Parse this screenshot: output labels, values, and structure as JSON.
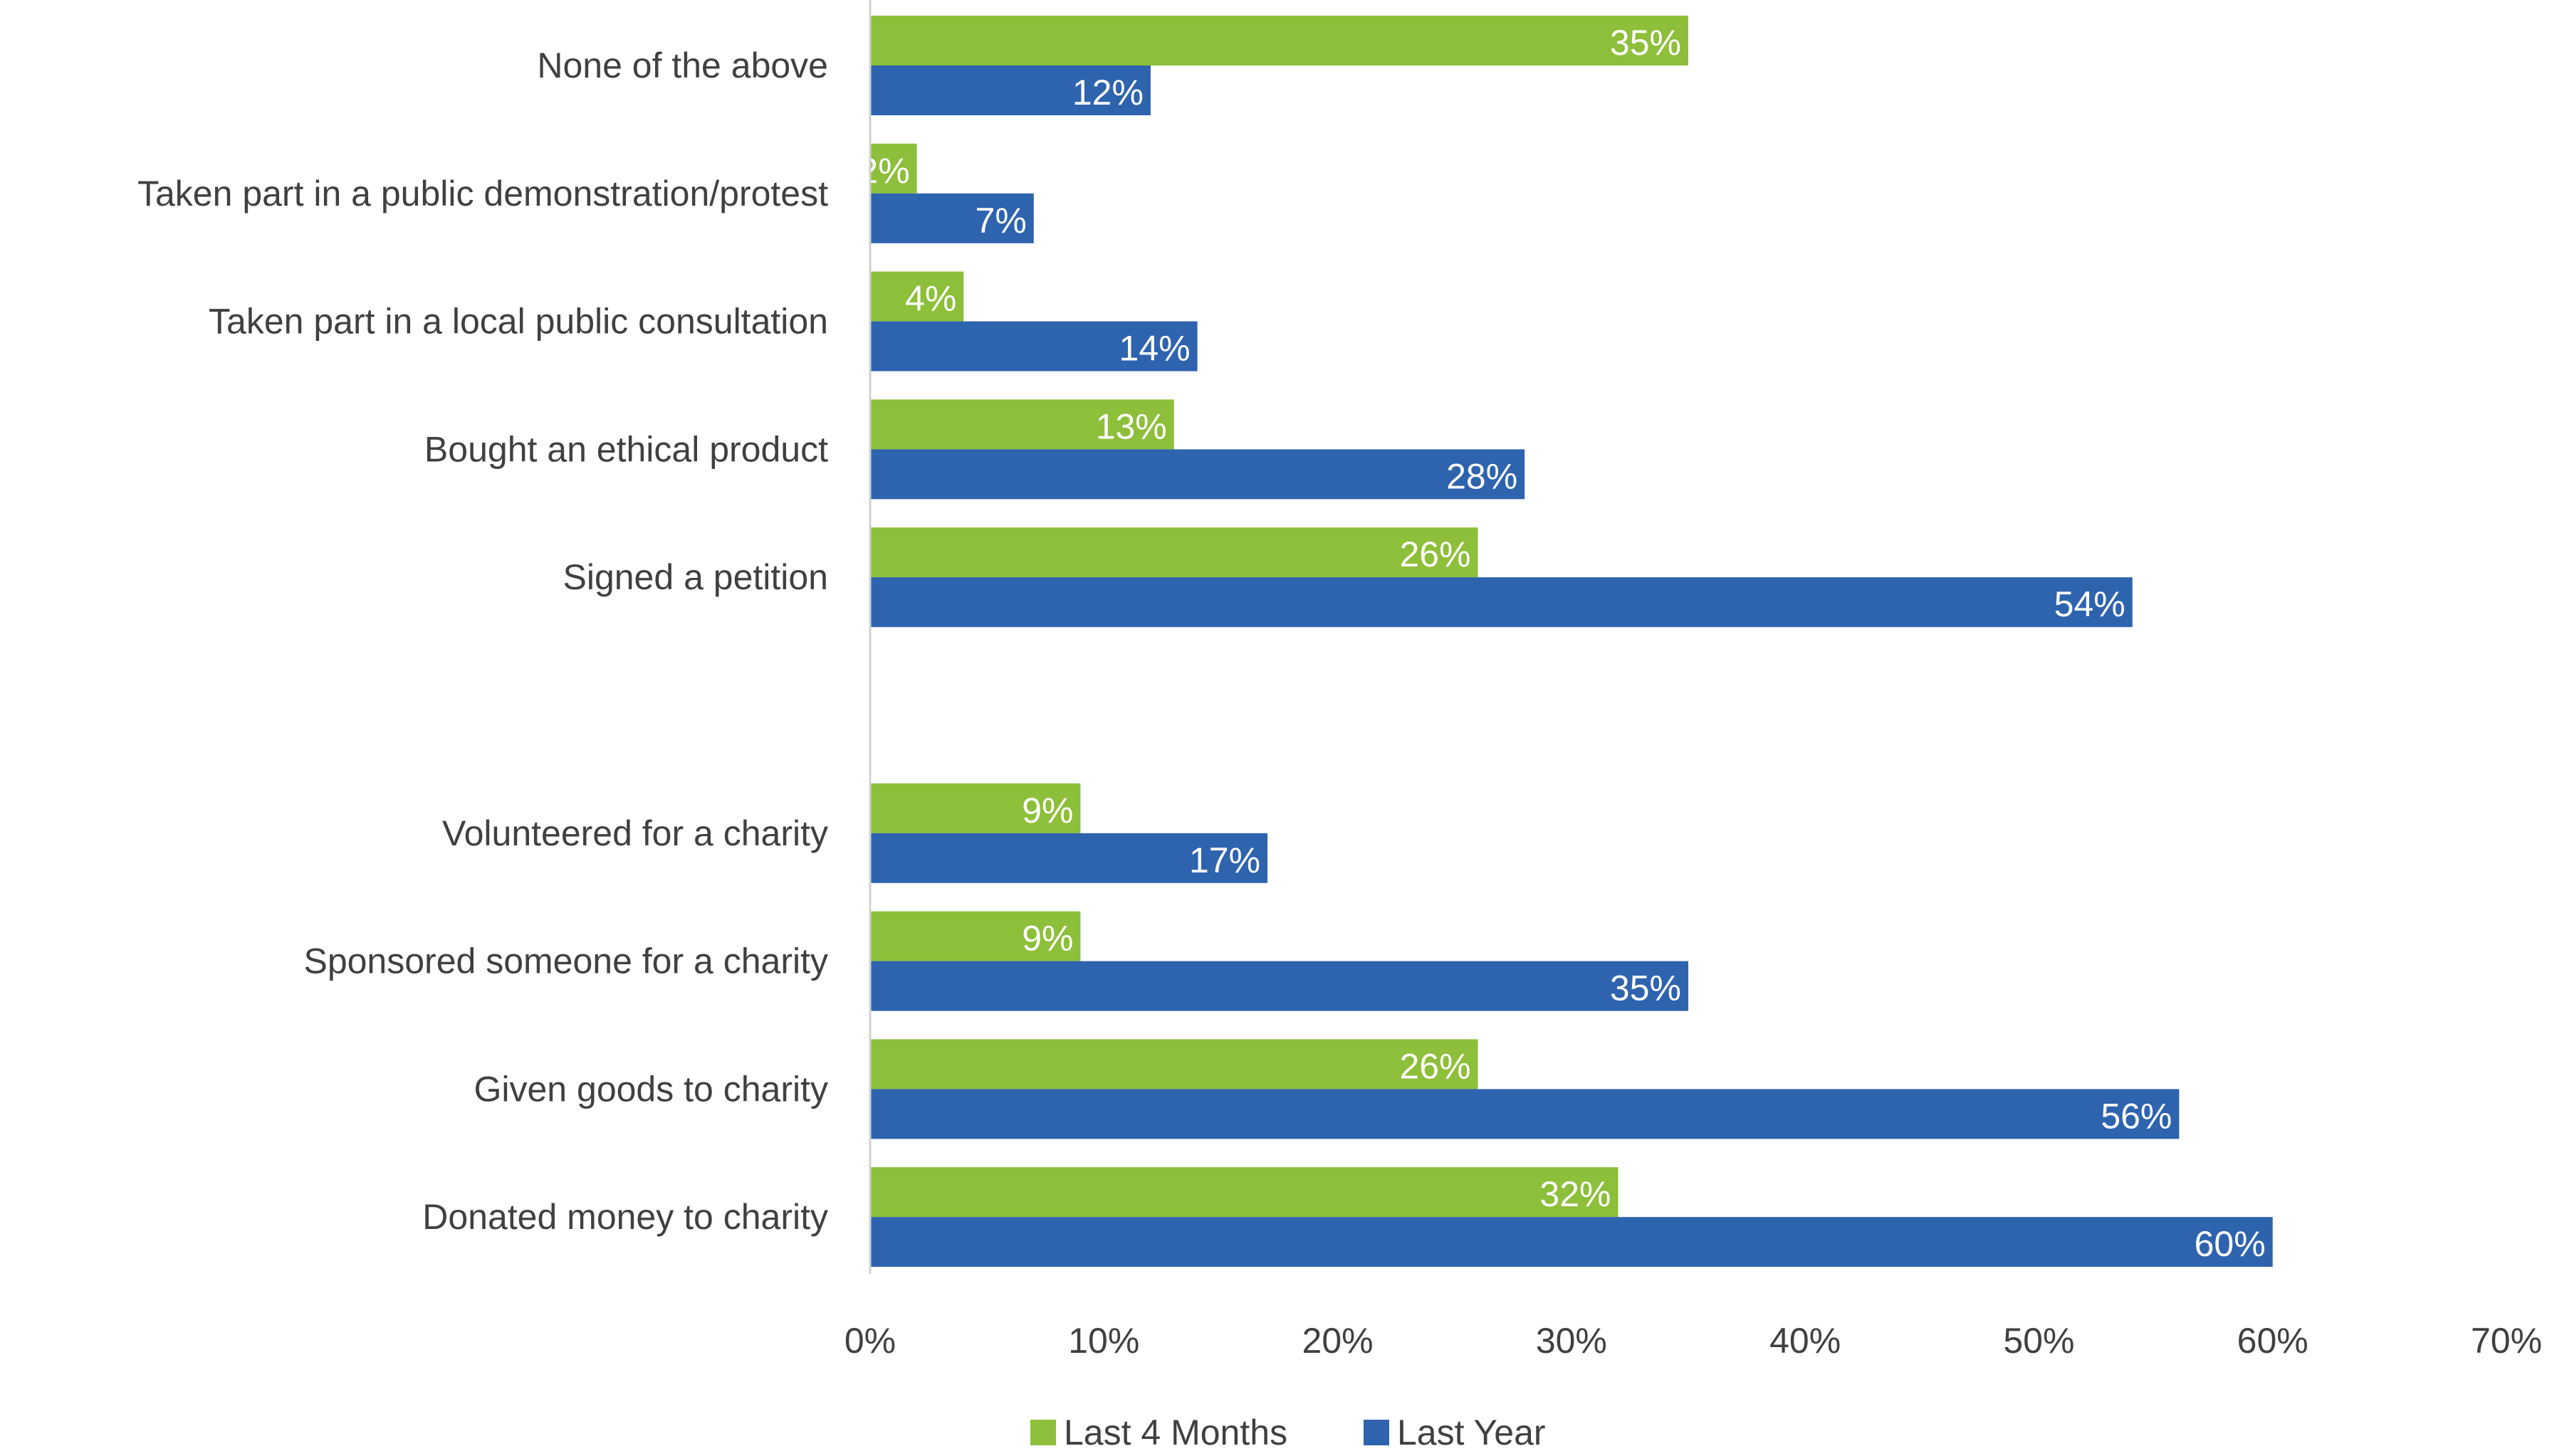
{
  "chart_data": {
    "type": "bar",
    "orientation": "horizontal",
    "title": "",
    "xlabel": "",
    "ylabel": "",
    "xlim": [
      0,
      70
    ],
    "x_ticks": [
      "0%",
      "10%",
      "20%",
      "30%",
      "40%",
      "50%",
      "60%",
      "70%"
    ],
    "grid": false,
    "legend_position": "bottom",
    "categories": [
      "None of the above",
      "Taken part in a public demonstration/protest",
      "Taken part in a local public consultation",
      "Bought an ethical product",
      "Signed a petition",
      "",
      "Volunteered for a charity",
      "Sponsored someone for a charity",
      "Given goods to charity",
      "Donated money to charity"
    ],
    "series": [
      {
        "name": "Last 4 Months",
        "color": "#8dbf3a",
        "values": [
          35,
          2,
          4,
          13,
          26,
          null,
          9,
          9,
          26,
          32
        ],
        "labels": [
          "35%",
          "2%",
          "4%",
          "13%",
          "26%",
          "",
          "9%",
          "9%",
          "26%",
          "32%"
        ]
      },
      {
        "name": "Last Year",
        "color": "#2e63ae",
        "values": [
          12,
          7,
          14,
          28,
          54,
          null,
          17,
          35,
          56,
          60
        ],
        "labels": [
          "12%",
          "7%",
          "14%",
          "28%",
          "54%",
          "",
          "17%",
          "35%",
          "56%",
          "60%"
        ]
      }
    ]
  }
}
